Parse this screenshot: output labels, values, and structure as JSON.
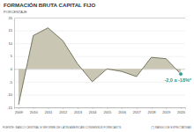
{
  "chart_data": {
    "type": "area",
    "title": "FORMACIÓN BRUTA CAPITAL FIJO",
    "subtitle": "PORCENTAJE",
    "categories": [
      "2009",
      "2010",
      "2011",
      "2012",
      "2013",
      "2014",
      "2015",
      "2016",
      "2017",
      "2018",
      "2019",
      "2020"
    ],
    "values": [
      -14,
      13,
      16,
      11,
      2,
      -5,
      0,
      -1,
      -3,
      4.5,
      4,
      -2
    ],
    "color": "#c9c7b4",
    "ylim": [
      -15,
      20
    ],
    "yticks": [
      -15,
      -10,
      -5,
      0,
      5,
      10,
      15,
      20
    ],
    "grid": true,
    "annotation": "-2,0 a -18%*",
    "source": "FUENTE: BANCO CENTRAL E INFORME DE LATIN AMERICAN CONSENSUS FORECASTS.",
    "note": "(*) RANGO DE EXPECTATIVAS"
  }
}
